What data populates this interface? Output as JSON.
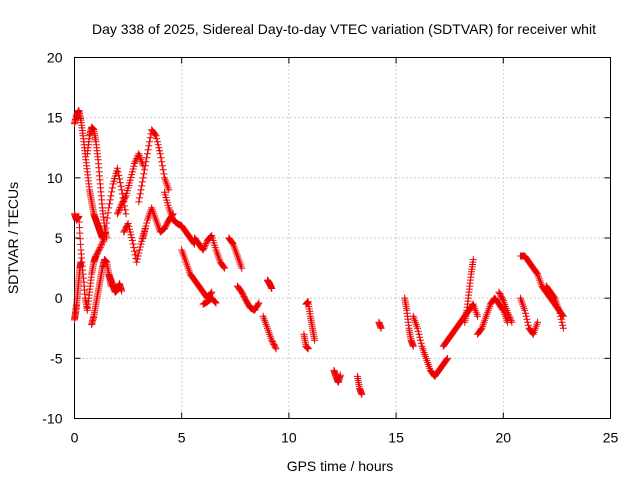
{
  "chart_data": {
    "type": "scatter",
    "title": "Day 338 of 2025, Sidereal Day-to-day VTEC variation (SDTVAR) for receiver whit",
    "xlabel": "GPS time / hours",
    "ylabel": "SDTVAR / TECUs",
    "xlim": [
      0,
      25
    ],
    "ylim": [
      -10,
      20
    ],
    "xticks": [
      "0",
      "5",
      "10",
      "15",
      "20",
      "25"
    ],
    "yticks": [
      "-10",
      "-5",
      "0",
      "5",
      "10",
      "15",
      "20"
    ],
    "grid": true,
    "marker": "plus",
    "color": "#ee0000",
    "series": [
      {
        "name": "SDTVAR",
        "segments": [
          {
            "x": [
              0.0,
              0.1,
              0.2,
              0.3,
              0.4,
              0.5,
              0.6,
              0.7,
              0.8,
              0.9,
              1.0,
              1.1,
              1.2,
              1.3
            ],
            "y": [
              14.5,
              15.2,
              15.6,
              14.8,
              13.5,
              12.0,
              10.5,
              9.0,
              8.0,
              7.0,
              6.5,
              6.0,
              5.5,
              5.0
            ]
          },
          {
            "x": [
              0.0,
              0.1,
              0.2,
              0.3,
              0.4,
              0.5,
              0.6,
              0.7,
              0.8,
              0.9,
              1.0
            ],
            "y": [
              7.0,
              6.5,
              6.8,
              4.0,
              2.0,
              0.0,
              -1.0,
              0.5,
              2.0,
              3.0,
              3.5
            ]
          },
          {
            "x": [
              0.0,
              0.05,
              0.1,
              0.15,
              0.2,
              0.25,
              0.3
            ],
            "y": [
              -1.8,
              -1.2,
              -0.5,
              0.5,
              1.5,
              2.5,
              3.0
            ]
          },
          {
            "x": [
              0.6,
              0.7,
              0.8,
              0.9,
              1.0,
              1.1,
              1.2,
              1.3,
              1.4,
              1.5
            ],
            "y": [
              12.0,
              13.5,
              14.2,
              14.0,
              13.0,
              11.5,
              9.5,
              7.5,
              6.0,
              5.0
            ]
          },
          {
            "x": [
              0.8,
              0.9,
              1.0,
              1.1,
              1.2,
              1.3,
              1.4,
              1.5,
              1.6,
              1.7
            ],
            "y": [
              -2.2,
              -1.5,
              -0.5,
              0.5,
              1.5,
              2.5,
              3.2,
              3.0,
              2.0,
              1.0
            ]
          },
          {
            "x": [
              1.0,
              1.2,
              1.4,
              1.6,
              1.8,
              2.0,
              2.2,
              2.4
            ],
            "y": [
              3.5,
              4.2,
              5.0,
              7.5,
              9.5,
              10.8,
              9.0,
              7.0
            ]
          },
          {
            "x": [
              1.6,
              1.7,
              1.8,
              1.9,
              2.0,
              2.1,
              2.2
            ],
            "y": [
              2.0,
              1.5,
              1.0,
              0.5,
              0.7,
              1.2,
              0.6
            ]
          },
          {
            "x": [
              2.0,
              2.2,
              2.4,
              2.6,
              2.8,
              3.0,
              3.2
            ],
            "y": [
              7.0,
              7.8,
              8.5,
              9.8,
              11.2,
              12.0,
              11.0
            ]
          },
          {
            "x": [
              2.3,
              2.5,
              2.7,
              2.9,
              3.1,
              3.3
            ],
            "y": [
              5.5,
              6.2,
              4.8,
              3.0,
              4.5,
              5.8
            ]
          },
          {
            "x": [
              3.0,
              3.2,
              3.4,
              3.6,
              3.8,
              4.0,
              4.2,
              4.4
            ],
            "y": [
              8.0,
              10.0,
              12.0,
              14.0,
              13.5,
              12.0,
              10.0,
              9.0
            ]
          },
          {
            "x": [
              3.2,
              3.4,
              3.6,
              3.8,
              4.0,
              4.2,
              4.4,
              4.6
            ],
            "y": [
              5.0,
              6.5,
              7.5,
              6.5,
              5.5,
              5.8,
              6.5,
              7.0
            ]
          },
          {
            "x": [
              4.2,
              4.4,
              4.6,
              4.8,
              5.0,
              5.2,
              5.4,
              5.6
            ],
            "y": [
              8.8,
              7.5,
              6.5,
              6.2,
              6.0,
              5.5,
              5.0,
              4.5
            ]
          },
          {
            "x": [
              5.0,
              5.2,
              5.4,
              5.6,
              5.8,
              6.0,
              6.2,
              6.4
            ],
            "y": [
              4.0,
              3.0,
              2.0,
              1.5,
              1.0,
              0.5,
              0.0,
              0.5
            ]
          },
          {
            "x": [
              5.6,
              5.8,
              6.0,
              6.2,
              6.4,
              6.6,
              6.8,
              7.0
            ],
            "y": [
              5.0,
              4.5,
              4.0,
              4.8,
              5.2,
              4.0,
              3.0,
              2.5
            ]
          },
          {
            "x": [
              6.0,
              6.2,
              6.4,
              6.6
            ],
            "y": [
              -0.5,
              -0.3,
              0.0,
              -0.4
            ]
          },
          {
            "x": [
              7.2,
              7.4,
              7.6,
              7.8
            ],
            "y": [
              5.0,
              4.5,
              3.5,
              2.5
            ]
          },
          {
            "x": [
              7.6,
              7.8,
              8.0,
              8.2,
              8.4,
              8.6
            ],
            "y": [
              1.0,
              0.5,
              -0.2,
              -0.8,
              -1.0,
              -0.4
            ]
          },
          {
            "x": [
              8.8,
              9.0,
              9.2,
              9.4
            ],
            "y": [
              -1.5,
              -2.5,
              -3.5,
              -4.2
            ]
          },
          {
            "x": [
              9.0,
              9.1,
              9.2
            ],
            "y": [
              1.5,
              1.2,
              0.8
            ]
          },
          {
            "x": [
              10.8,
              10.9,
              11.0,
              11.1,
              11.2
            ],
            "y": [
              -0.5,
              -0.3,
              -1.5,
              -2.5,
              -3.5
            ]
          },
          {
            "x": [
              10.7,
              10.8,
              10.9
            ],
            "y": [
              -3.0,
              -4.0,
              -4.2
            ]
          },
          {
            "x": [
              12.1,
              12.2,
              12.3,
              12.4
            ],
            "y": [
              -6.0,
              -6.5,
              -7.0,
              -6.4
            ]
          },
          {
            "x": [
              13.2,
              13.3,
              13.4
            ],
            "y": [
              -6.5,
              -7.5,
              -8.0
            ]
          },
          {
            "x": [
              14.2,
              14.3
            ],
            "y": [
              -2.0,
              -2.5
            ]
          },
          {
            "x": [
              15.4,
              15.5,
              15.6,
              15.7,
              15.8
            ],
            "y": [
              0.0,
              -1.0,
              -2.5,
              -3.5,
              -4.0
            ]
          },
          {
            "x": [
              15.8,
              16.0,
              16.2,
              16.4,
              16.6,
              16.8,
              17.0,
              17.2,
              17.4
            ],
            "y": [
              -1.5,
              -2.5,
              -4.0,
              -5.0,
              -6.0,
              -6.5,
              -6.0,
              -5.5,
              -5.0
            ]
          },
          {
            "x": [
              17.2,
              17.4,
              17.6,
              17.8,
              18.0,
              18.2,
              18.4,
              18.6,
              18.8
            ],
            "y": [
              -4.0,
              -3.5,
              -3.0,
              -2.5,
              -2.0,
              -1.5,
              -1.0,
              -0.5,
              -1.5
            ]
          },
          {
            "x": [
              18.2,
              18.3,
              18.4,
              18.5,
              18.6
            ],
            "y": [
              -2.0,
              -1.0,
              0.5,
              2.0,
              3.2
            ]
          },
          {
            "x": [
              18.8,
              19.0,
              19.2,
              19.4,
              19.6,
              19.8,
              20.0,
              20.2
            ],
            "y": [
              -3.0,
              -2.5,
              -1.5,
              -0.5,
              0.0,
              -0.5,
              -1.0,
              -2.0
            ]
          },
          {
            "x": [
              19.8,
              20.0,
              20.2,
              20.4
            ],
            "y": [
              0.5,
              -0.2,
              -1.2,
              -2.0
            ]
          },
          {
            "x": [
              20.8,
              21.0,
              21.2,
              21.4,
              21.6,
              21.8,
              22.0,
              22.2,
              22.4,
              22.6,
              22.8
            ],
            "y": [
              3.5,
              3.5,
              3.0,
              2.5,
              2.0,
              1.0,
              0.5,
              0.0,
              -0.5,
              -1.0,
              -1.5
            ]
          },
          {
            "x": [
              20.8,
              21.0,
              21.2,
              21.4,
              21.6
            ],
            "y": [
              0.0,
              -1.0,
              -2.5,
              -3.0,
              -2.0
            ]
          },
          {
            "x": [
              22.0,
              22.2,
              22.4,
              22.6,
              22.8
            ],
            "y": [
              1.0,
              0.5,
              0.0,
              -1.0,
              -2.5
            ]
          }
        ]
      }
    ]
  }
}
